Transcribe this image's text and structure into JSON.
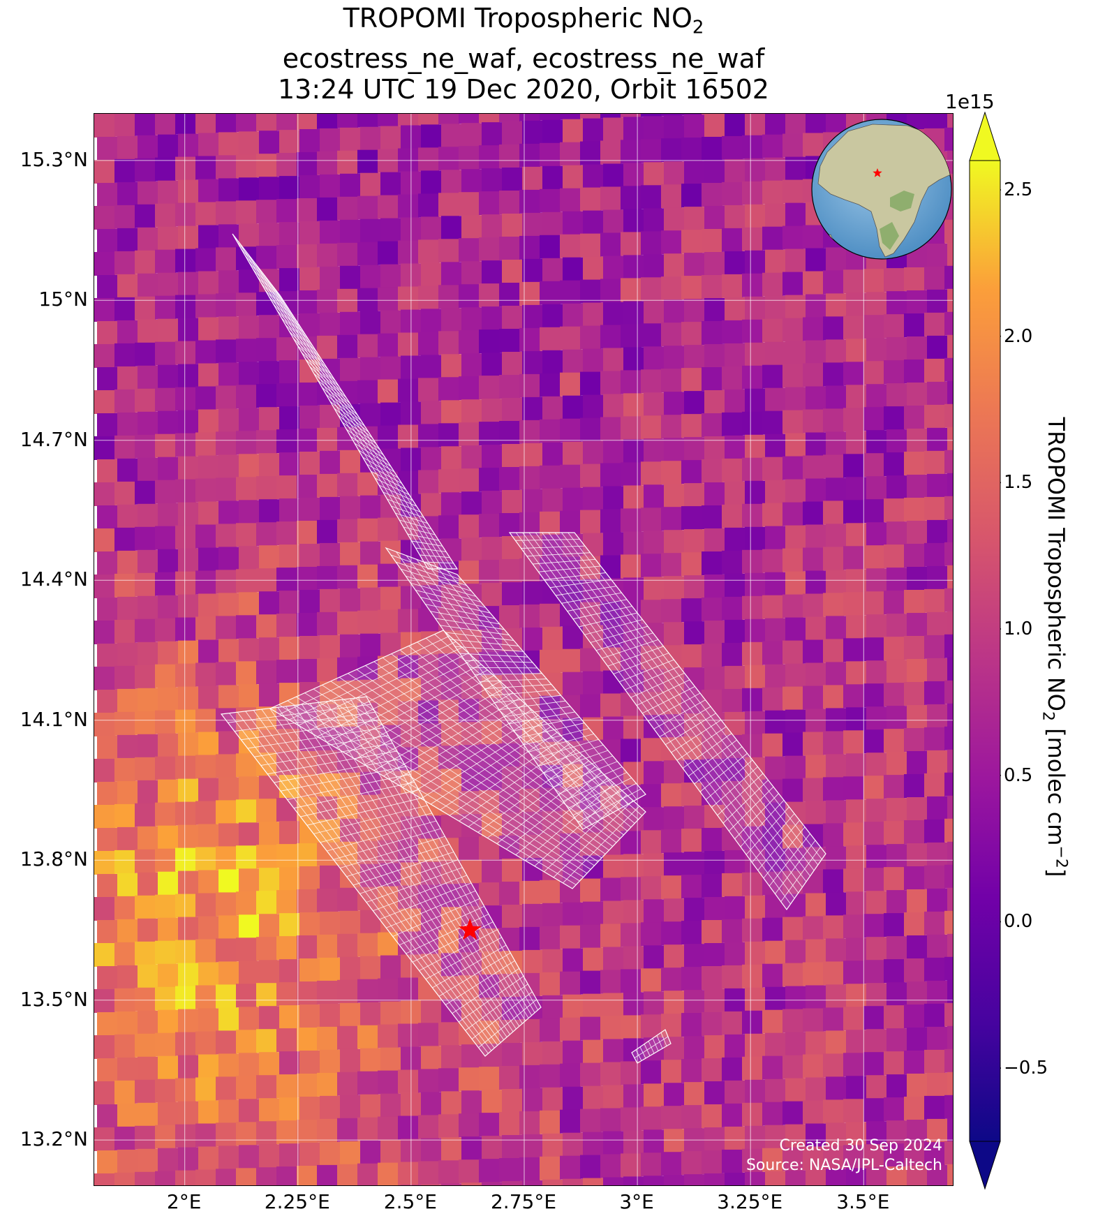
{
  "title": {
    "line1": "TROPOMI Tropospheric NO",
    "line1_sub": "2",
    "line2": "ecostress_ne_waf, ecostress_ne_waf",
    "line3": "13:24 UTC 19 Dec 2020, Orbit 16502"
  },
  "map": {
    "lon_range": [
      1.8,
      3.7
    ],
    "lat_range": [
      13.1,
      15.4
    ],
    "lat_ticks": [
      {
        "value": 15.3,
        "label": "15.3°N"
      },
      {
        "value": 15.0,
        "label": "15°N"
      },
      {
        "value": 14.7,
        "label": "14.7°N"
      },
      {
        "value": 14.4,
        "label": "14.4°N"
      },
      {
        "value": 14.1,
        "label": "14.1°N"
      },
      {
        "value": 13.8,
        "label": "13.8°N"
      },
      {
        "value": 13.5,
        "label": "13.5°N"
      },
      {
        "value": 13.2,
        "label": "13.2°N"
      }
    ],
    "lon_ticks": [
      {
        "value": 2.0,
        "label": "2°E"
      },
      {
        "value": 2.25,
        "label": "2.25°E"
      },
      {
        "value": 2.5,
        "label": "2.5°E"
      },
      {
        "value": 2.75,
        "label": "2.75°E"
      },
      {
        "value": 3.0,
        "label": "3°E"
      },
      {
        "value": 3.25,
        "label": "3.25°E"
      },
      {
        "value": 3.5,
        "label": "3.5°E"
      }
    ],
    "target_marker": {
      "lon": 2.63,
      "lat": 13.65,
      "color": "#ff0000"
    },
    "grid_color": "#ffffff",
    "overlay": "ECOSTRESS scene footprints (white grid)",
    "credits": [
      "Created 30 Sep 2024",
      "Source: NASA/JPL-Caltech"
    ]
  },
  "colorbar": {
    "label": "TROPOMI Tropospheric NO",
    "label_sub": "2",
    "label_units": " [molec cm",
    "label_units_sup": "−2",
    "label_close": "]",
    "exponent": "1e15",
    "vmin": -0.75,
    "vmax": 2.6,
    "colormap": "plasma",
    "ticks": [
      {
        "value": 2.5,
        "label": "2.5"
      },
      {
        "value": 2.0,
        "label": "2.0"
      },
      {
        "value": 1.5,
        "label": "1.5"
      },
      {
        "value": 1.0,
        "label": "1.0"
      },
      {
        "value": 0.5,
        "label": "0.5"
      },
      {
        "value": 0.0,
        "label": "0.0"
      },
      {
        "value": -0.5,
        "label": "−0.5"
      }
    ]
  },
  "inset_globe": {
    "marker_color": "#ff0000",
    "ocean_color": "#6fa8d6",
    "land_color": "#c9c7a0"
  }
}
